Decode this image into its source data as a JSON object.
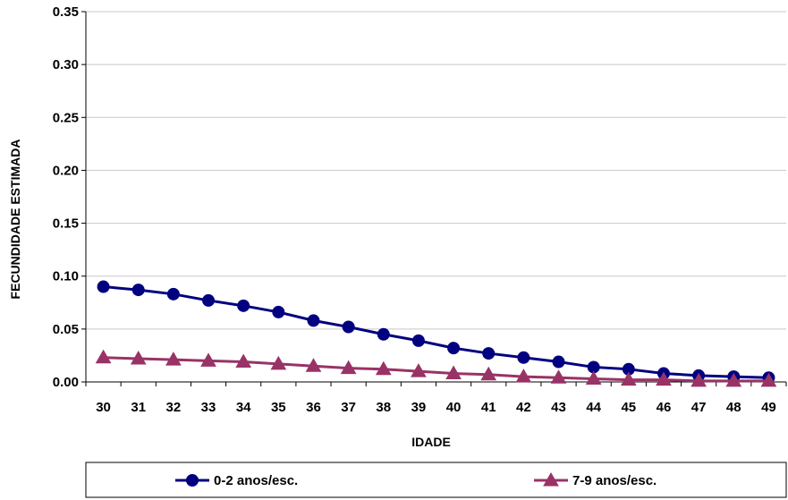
{
  "chart_data": {
    "type": "line",
    "xlabel": "IDADE",
    "ylabel": "FECUNDIDADE ESTIMADA",
    "ylim": [
      0,
      0.35
    ],
    "yticks": [
      "0.00",
      "0.05",
      "0.10",
      "0.15",
      "0.20",
      "0.25",
      "0.30",
      "0.35"
    ],
    "x": [
      30,
      31,
      32,
      33,
      34,
      35,
      36,
      37,
      38,
      39,
      40,
      41,
      42,
      43,
      44,
      45,
      46,
      47,
      48,
      49
    ],
    "grid": true,
    "legend_position": "bottom",
    "series": [
      {
        "name": "0-2 anos/esc.",
        "color": "#000080",
        "marker": "circle",
        "values": [
          0.09,
          0.087,
          0.083,
          0.077,
          0.072,
          0.066,
          0.058,
          0.052,
          0.045,
          0.039,
          0.032,
          0.027,
          0.023,
          0.019,
          0.014,
          0.012,
          0.008,
          0.006,
          0.005,
          0.004
        ]
      },
      {
        "name": "7-9 anos/esc.",
        "color": "#993366",
        "marker": "triangle",
        "values": [
          0.023,
          0.022,
          0.021,
          0.02,
          0.019,
          0.017,
          0.015,
          0.013,
          0.012,
          0.01,
          0.008,
          0.007,
          0.005,
          0.004,
          0.003,
          0.002,
          0.002,
          0.001,
          0.001,
          0.001
        ]
      }
    ]
  }
}
